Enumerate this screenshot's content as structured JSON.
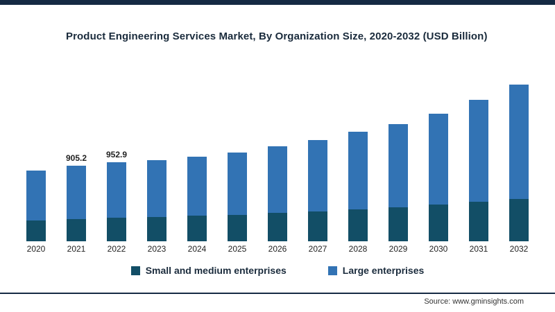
{
  "page": {
    "source": "Source: www.gminsights.com"
  },
  "chart_data": {
    "type": "bar",
    "stacked": true,
    "title": "Product Engineering Services Market, By Organization Size, 2020-2032 (USD Billion)",
    "categories": [
      "2020",
      "2021",
      "2022",
      "2023",
      "2024",
      "2025",
      "2026",
      "2027",
      "2028",
      "2029",
      "2030",
      "2031",
      "2032"
    ],
    "series": [
      {
        "name": "Small and medium enterprises",
        "color": "#124e66",
        "values": [
          250,
          265,
          280,
          290,
          305,
          320,
          340,
          360,
          385,
          410,
          440,
          475,
          510
        ]
      },
      {
        "name": "Large enterprises",
        "color": "#3273b4",
        "values": [
          598,
          640.2,
          672.9,
          685,
          715,
          750,
          805,
          860,
          935,
          995,
          1090,
          1225,
          1370
        ]
      }
    ],
    "data_labels": {
      "2021": "905.2",
      "2022": "952.9"
    },
    "xlabel": "",
    "ylabel": "",
    "ylim": [
      0,
      2000
    ],
    "grid": false,
    "legend_position": "bottom",
    "accent_border_color": "#152a43"
  }
}
